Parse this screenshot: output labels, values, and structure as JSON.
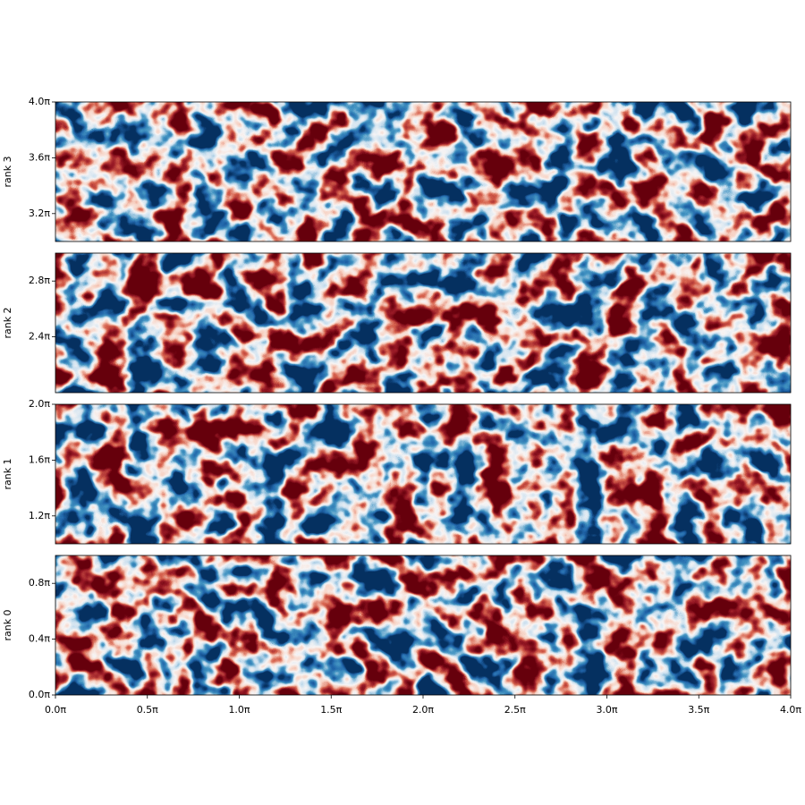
{
  "chart_data": [
    {
      "type": "heatmap",
      "ylabel": "rank 3",
      "ylim": [
        3,
        4
      ],
      "yticks": [
        {
          "value": 3.2,
          "label": "3.2π"
        },
        {
          "value": 3.6,
          "label": "3.6π"
        },
        {
          "value": 4.0,
          "label": "4.0π"
        }
      ]
    },
    {
      "type": "heatmap",
      "ylabel": "rank 2",
      "ylim": [
        2,
        3
      ],
      "yticks": [
        {
          "value": 2.4,
          "label": "2.4π"
        },
        {
          "value": 2.8,
          "label": "2.8π"
        }
      ]
    },
    {
      "type": "heatmap",
      "ylabel": "rank 1",
      "ylim": [
        1,
        2
      ],
      "yticks": [
        {
          "value": 1.2,
          "label": "1.2π"
        },
        {
          "value": 1.6,
          "label": "1.6π"
        },
        {
          "value": 2.0,
          "label": "2.0π"
        }
      ]
    },
    {
      "type": "heatmap",
      "ylabel": "rank 0",
      "ylim": [
        0,
        1
      ],
      "yticks": [
        {
          "value": 0.0,
          "label": "0.0π"
        },
        {
          "value": 0.4,
          "label": "0.4π"
        },
        {
          "value": 0.8,
          "label": "0.8π"
        }
      ],
      "xlim": [
        0,
        4
      ],
      "xticks": [
        {
          "value": 0,
          "label": "0.0π"
        },
        {
          "value": 0.5,
          "label": "0.5π"
        },
        {
          "value": 1,
          "label": "1.0π"
        },
        {
          "value": 1.5,
          "label": "1.5π"
        },
        {
          "value": 2,
          "label": "2.0π"
        },
        {
          "value": 2.5,
          "label": "2.5π"
        },
        {
          "value": 3,
          "label": "3.0π"
        },
        {
          "value": 3.5,
          "label": "3.5π"
        },
        {
          "value": 4,
          "label": "4.0π"
        }
      ]
    }
  ]
}
